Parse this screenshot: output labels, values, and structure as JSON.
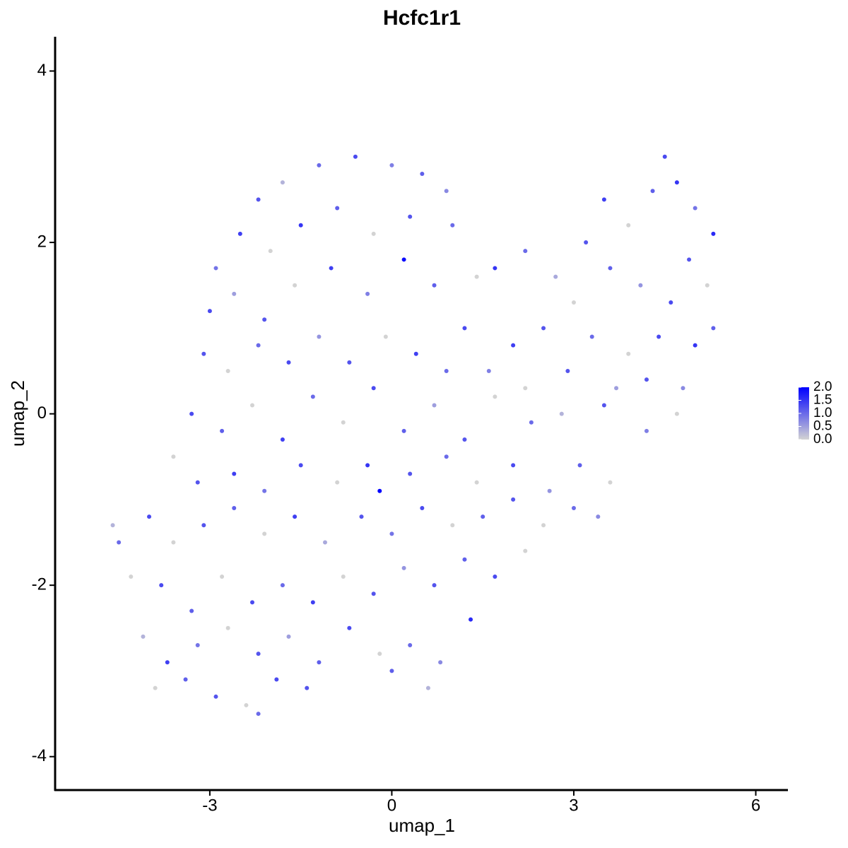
{
  "chart_data": {
    "type": "scatter",
    "title": "Hcfc1r1",
    "xlabel": "umap_1",
    "ylabel": "umap_2",
    "x": [
      -2.2,
      -1.8,
      -1.2,
      -0.6,
      0.0,
      0.5,
      -2.5,
      -2.9,
      -2.0,
      -1.5,
      -0.9,
      -0.3,
      0.3,
      0.9,
      1.0,
      -3.0,
      -2.6,
      -2.1,
      -1.6,
      -1.0,
      -0.4,
      0.2,
      0.7,
      -3.1,
      -2.7,
      -2.2,
      -1.7,
      -1.2,
      -0.7,
      -0.1,
      0.4,
      0.9,
      1.2,
      1.4,
      1.7,
      2.2,
      2.7,
      3.2,
      3.5,
      3.9,
      4.3,
      4.5,
      4.7,
      5.0,
      5.3,
      4.9,
      5.2,
      4.6,
      4.1,
      3.6,
      3.0,
      2.5,
      2.0,
      1.6,
      3.3,
      3.9,
      4.4,
      5.0,
      5.3,
      4.8,
      4.2,
      3.7,
      2.9,
      2.2,
      -3.3,
      -2.8,
      -2.3,
      -1.8,
      -1.3,
      -0.8,
      -0.3,
      0.2,
      0.7,
      1.2,
      1.7,
      2.3,
      2.8,
      3.5,
      4.2,
      4.7,
      -3.6,
      -3.2,
      -2.6,
      -2.1,
      -1.5,
      -0.9,
      -0.4,
      -0.2,
      0.3,
      0.9,
      1.4,
      2.0,
      2.6,
      3.1,
      3.6,
      -4.6,
      -4.5,
      -4.0,
      -3.6,
      -3.1,
      -2.6,
      -2.1,
      -1.6,
      -1.1,
      -0.5,
      0.0,
      0.5,
      1.0,
      1.5,
      2.0,
      2.5,
      3.0,
      3.4,
      -4.3,
      -3.8,
      -3.3,
      -2.8,
      -2.3,
      -1.8,
      -1.3,
      -0.8,
      -0.3,
      0.2,
      0.7,
      1.2,
      1.7,
      2.2,
      -4.1,
      -3.7,
      -3.2,
      -2.7,
      -2.2,
      -1.7,
      -1.2,
      -0.7,
      -0.2,
      0.3,
      0.8,
      1.3,
      -3.4,
      -2.9,
      -2.4,
      -2.2,
      -1.9,
      -1.4,
      0.0,
      -3.9,
      0.6
    ],
    "y": [
      2.5,
      2.7,
      2.9,
      3.0,
      2.9,
      2.8,
      2.1,
      1.7,
      1.9,
      2.2,
      2.4,
      2.1,
      2.3,
      2.6,
      2.2,
      1.2,
      1.4,
      1.1,
      1.5,
      1.7,
      1.4,
      1.8,
      1.5,
      0.7,
      0.5,
      0.8,
      0.6,
      0.9,
      0.6,
      0.9,
      0.7,
      0.5,
      1.0,
      1.6,
      1.7,
      1.9,
      1.6,
      2.0,
      2.5,
      2.2,
      2.6,
      3.0,
      2.7,
      2.4,
      2.1,
      1.8,
      1.5,
      1.3,
      1.5,
      1.7,
      1.3,
      1.0,
      0.8,
      0.5,
      0.9,
      0.7,
      0.9,
      0.8,
      1.0,
      0.3,
      0.4,
      0.3,
      0.5,
      0.3,
      0.0,
      -0.2,
      0.1,
      -0.3,
      0.2,
      -0.1,
      0.3,
      -0.2,
      0.1,
      -0.3,
      0.2,
      -0.1,
      0.0,
      0.1,
      -0.2,
      0.0,
      -0.5,
      -0.8,
      -0.7,
      -0.9,
      -0.6,
      -0.8,
      -0.6,
      -0.9,
      -0.7,
      -0.5,
      -0.8,
      -0.6,
      -0.9,
      -0.6,
      -0.8,
      -1.3,
      -1.5,
      -1.2,
      -1.5,
      -1.3,
      -1.1,
      -1.4,
      -1.2,
      -1.5,
      -1.2,
      -1.4,
      -1.1,
      -1.3,
      -1.2,
      -1.0,
      -1.3,
      -1.1,
      -1.2,
      -1.9,
      -2.0,
      -2.3,
      -1.9,
      -2.2,
      -2.0,
      -2.2,
      -1.9,
      -2.1,
      -1.8,
      -2.0,
      -1.7,
      -1.9,
      -1.6,
      -2.6,
      -2.9,
      -2.7,
      -2.5,
      -2.8,
      -2.6,
      -2.9,
      -2.5,
      -2.8,
      -2.7,
      -2.9,
      -2.4,
      -3.1,
      -3.3,
      -3.4,
      -3.5,
      -3.1,
      -3.2,
      -3.0,
      -3.2,
      -3.2
    ],
    "values": [
      1.2,
      0.3,
      1.0,
      1.3,
      0.8,
      1.1,
      1.4,
      0.9,
      0.0,
      1.5,
      1.1,
      0.0,
      1.2,
      0.7,
      1.0,
      1.3,
      0.5,
      1.2,
      0.0,
      1.4,
      0.8,
      1.9,
      1.1,
      1.2,
      0.0,
      1.0,
      1.3,
      0.6,
      1.2,
      0.0,
      1.4,
      1.0,
      1.3,
      0.0,
      1.5,
      1.0,
      0.4,
      1.2,
      1.4,
      0.0,
      1.1,
      1.3,
      1.5,
      0.9,
      1.6,
      1.2,
      0.0,
      1.3,
      0.6,
      1.1,
      0.0,
      1.2,
      1.4,
      0.8,
      1.0,
      0.0,
      1.3,
      1.5,
      1.1,
      0.7,
      1.2,
      0.5,
      1.2,
      0.0,
      1.3,
      1.1,
      0.0,
      1.4,
      1.0,
      0.0,
      1.3,
      1.1,
      0.5,
      1.2,
      0.0,
      1.0,
      0.3,
      1.2,
      0.8,
      0.0,
      0.0,
      1.2,
      1.4,
      0.9,
      1.3,
      0.0,
      1.5,
      2.0,
      1.2,
      1.0,
      0.0,
      1.3,
      0.6,
      1.1,
      0.0,
      0.3,
      1.0,
      1.3,
      0.0,
      1.2,
      1.1,
      0.0,
      1.4,
      0.4,
      1.2,
      0.9,
      1.3,
      0.0,
      1.1,
      1.2,
      0.0,
      1.0,
      0.7,
      0.0,
      1.3,
      1.1,
      0.0,
      1.3,
      1.0,
      1.4,
      0.0,
      1.2,
      0.6,
      1.2,
      1.1,
      1.3,
      0.0,
      0.3,
      1.4,
      0.9,
      0.0,
      1.2,
      0.5,
      1.1,
      1.3,
      0.0,
      1.0,
      0.7,
      1.6,
      1.1,
      1.2,
      0.0,
      1.0,
      1.3,
      1.2,
      1.1,
      0.0,
      0.3
    ],
    "color_low": "#d3d3d3",
    "color_high": "#0000ff",
    "color_lim": [
      0,
      2
    ],
    "color_ticks": [
      {
        "value": 2,
        "label": "2.0"
      },
      {
        "value": 1.5,
        "label": "1.5"
      },
      {
        "value": 1,
        "label": "1.0"
      },
      {
        "value": 0.5,
        "label": "0.5"
      },
      {
        "value": 0,
        "label": "0.0"
      }
    ],
    "xlim": [
      -5.55,
      6.53
    ],
    "ylim": [
      -4.39,
      4.4
    ],
    "xticks": [
      -3,
      0,
      3,
      6
    ],
    "yticks": [
      -4,
      -2,
      0,
      2,
      4
    ]
  }
}
